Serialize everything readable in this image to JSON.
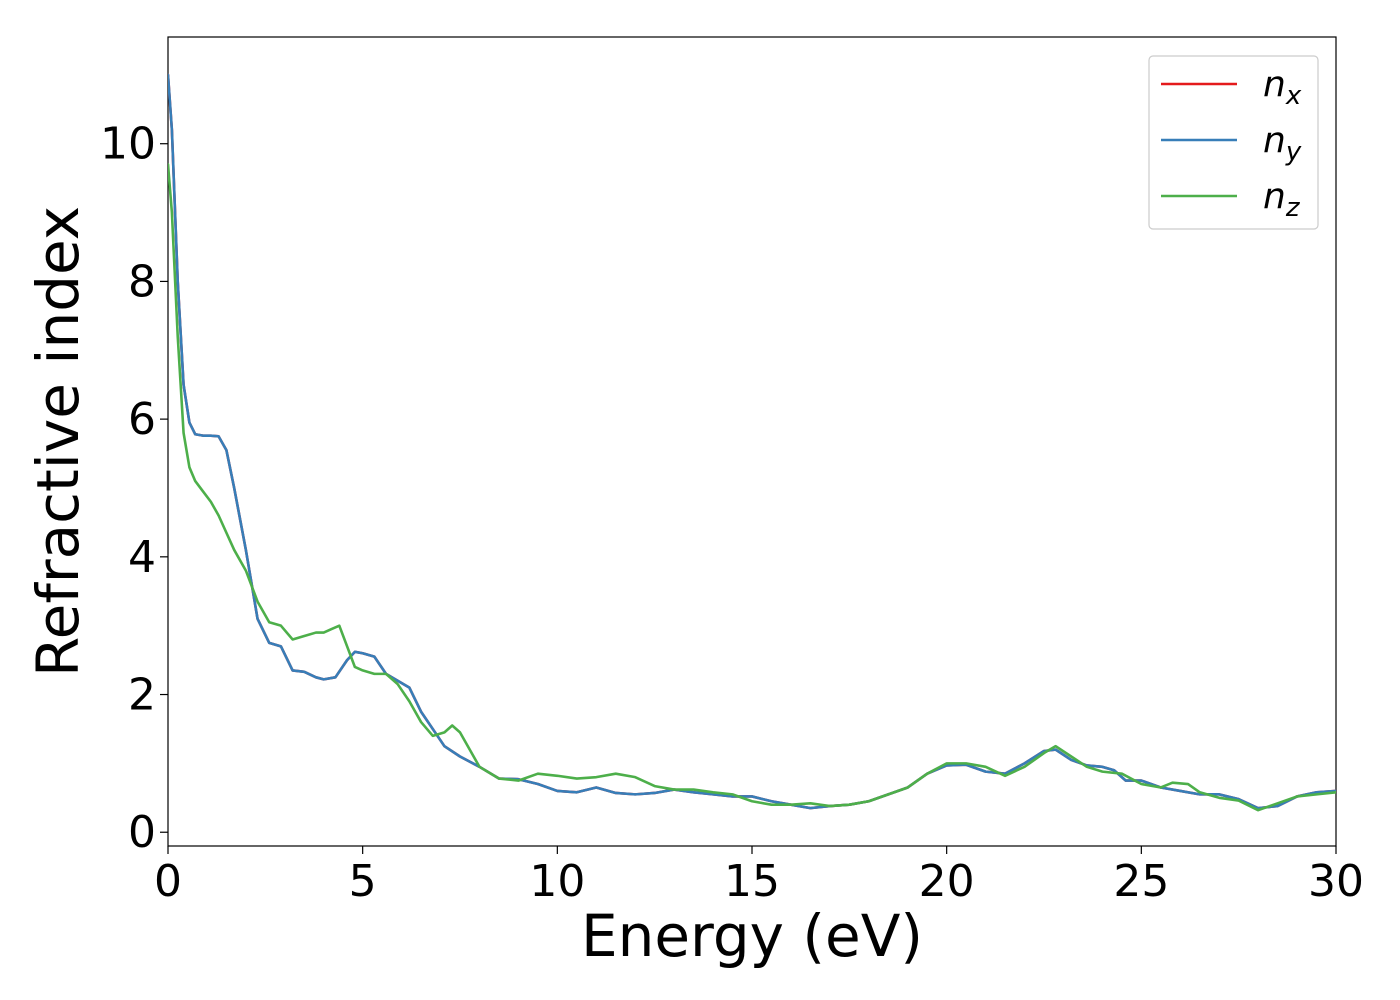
{
  "chart_data": {
    "type": "line",
    "title": "",
    "xlabel": "Energy (eV)",
    "ylabel": "Refractive index",
    "xlim": [
      0,
      30
    ],
    "ylim": [
      -0.2,
      11.55
    ],
    "x_ticks": [
      0,
      5,
      10,
      15,
      20,
      25,
      30
    ],
    "y_ticks": [
      0,
      2,
      4,
      6,
      8,
      10
    ],
    "grid": false,
    "legend_position": "top-right",
    "series": [
      {
        "name": "n_x",
        "legend_base": "n",
        "legend_sub": "x",
        "color": "#e41a1c",
        "x": [
          0,
          0.1,
          0.25,
          0.4,
          0.55,
          0.7,
          0.9,
          1.1,
          1.3,
          1.5,
          1.7,
          2.0,
          2.3,
          2.6,
          2.9,
          3.2,
          3.5,
          3.8,
          4.0,
          4.3,
          4.6,
          4.8,
          5.0,
          5.3,
          5.6,
          5.9,
          6.2,
          6.5,
          6.8,
          7.1,
          7.5,
          8.0,
          8.5,
          9.0,
          9.5,
          10.0,
          10.5,
          11.0,
          11.5,
          12.0,
          12.5,
          13.0,
          13.5,
          14.0,
          14.5,
          15.0,
          15.5,
          16.0,
          16.5,
          17.0,
          17.5,
          18.0,
          18.5,
          19.0,
          19.5,
          20.0,
          20.5,
          21.0,
          21.5,
          22.0,
          22.5,
          22.8,
          23.2,
          23.6,
          24.0,
          24.3,
          24.6,
          25.0,
          25.5,
          26.0,
          26.5,
          27.0,
          27.5,
          28.0,
          28.5,
          29.0,
          29.5,
          30.0
        ],
        "y": [
          11.0,
          10.2,
          8.0,
          6.5,
          5.95,
          5.78,
          5.76,
          5.76,
          5.75,
          5.55,
          5.0,
          4.1,
          3.1,
          2.75,
          2.7,
          2.35,
          2.33,
          2.25,
          2.22,
          2.25,
          2.5,
          2.62,
          2.6,
          2.55,
          2.3,
          2.2,
          2.1,
          1.75,
          1.5,
          1.25,
          1.1,
          0.95,
          0.78,
          0.77,
          0.7,
          0.6,
          0.58,
          0.65,
          0.57,
          0.55,
          0.57,
          0.62,
          0.58,
          0.55,
          0.52,
          0.52,
          0.45,
          0.4,
          0.35,
          0.38,
          0.4,
          0.45,
          0.55,
          0.65,
          0.85,
          0.97,
          0.98,
          0.88,
          0.85,
          1.0,
          1.18,
          1.2,
          1.05,
          0.97,
          0.95,
          0.9,
          0.75,
          0.75,
          0.65,
          0.6,
          0.55,
          0.55,
          0.48,
          0.35,
          0.38,
          0.52,
          0.58,
          0.6
        ]
      },
      {
        "name": "n_y",
        "legend_base": "n",
        "legend_sub": "y",
        "color": "#377eb8",
        "x": [
          0,
          0.1,
          0.25,
          0.4,
          0.55,
          0.7,
          0.9,
          1.1,
          1.3,
          1.5,
          1.7,
          2.0,
          2.3,
          2.6,
          2.9,
          3.2,
          3.5,
          3.8,
          4.0,
          4.3,
          4.6,
          4.8,
          5.0,
          5.3,
          5.6,
          5.9,
          6.2,
          6.5,
          6.8,
          7.1,
          7.5,
          8.0,
          8.5,
          9.0,
          9.5,
          10.0,
          10.5,
          11.0,
          11.5,
          12.0,
          12.5,
          13.0,
          13.5,
          14.0,
          14.5,
          15.0,
          15.5,
          16.0,
          16.5,
          17.0,
          17.5,
          18.0,
          18.5,
          19.0,
          19.5,
          20.0,
          20.5,
          21.0,
          21.5,
          22.0,
          22.5,
          22.8,
          23.2,
          23.6,
          24.0,
          24.3,
          24.6,
          25.0,
          25.5,
          26.0,
          26.5,
          27.0,
          27.5,
          28.0,
          28.5,
          29.0,
          29.5,
          30.0
        ],
        "y": [
          11.0,
          10.2,
          8.0,
          6.5,
          5.95,
          5.78,
          5.76,
          5.76,
          5.75,
          5.55,
          5.0,
          4.1,
          3.1,
          2.75,
          2.7,
          2.35,
          2.33,
          2.25,
          2.22,
          2.25,
          2.5,
          2.62,
          2.6,
          2.55,
          2.3,
          2.2,
          2.1,
          1.75,
          1.5,
          1.25,
          1.1,
          0.95,
          0.78,
          0.77,
          0.7,
          0.6,
          0.58,
          0.65,
          0.57,
          0.55,
          0.57,
          0.62,
          0.58,
          0.55,
          0.52,
          0.52,
          0.45,
          0.4,
          0.35,
          0.38,
          0.4,
          0.45,
          0.55,
          0.65,
          0.85,
          0.97,
          0.98,
          0.88,
          0.85,
          1.0,
          1.18,
          1.2,
          1.05,
          0.97,
          0.95,
          0.9,
          0.75,
          0.75,
          0.65,
          0.6,
          0.55,
          0.55,
          0.48,
          0.35,
          0.38,
          0.52,
          0.58,
          0.6
        ]
      },
      {
        "name": "n_z",
        "legend_base": "n",
        "legend_sub": "z",
        "color": "#4daf4a",
        "x": [
          0,
          0.1,
          0.25,
          0.4,
          0.55,
          0.7,
          0.9,
          1.1,
          1.3,
          1.5,
          1.7,
          2.0,
          2.3,
          2.6,
          2.9,
          3.2,
          3.5,
          3.8,
          4.0,
          4.2,
          4.4,
          4.6,
          4.8,
          5.0,
          5.3,
          5.6,
          5.9,
          6.2,
          6.5,
          6.8,
          7.1,
          7.3,
          7.5,
          8.0,
          8.5,
          9.0,
          9.5,
          10.0,
          10.5,
          11.0,
          11.5,
          12.0,
          12.5,
          13.0,
          13.5,
          14.0,
          14.5,
          15.0,
          15.5,
          16.0,
          16.5,
          17.0,
          17.5,
          18.0,
          18.5,
          19.0,
          19.5,
          20.0,
          20.5,
          21.0,
          21.5,
          22.0,
          22.5,
          22.8,
          23.2,
          23.6,
          24.0,
          24.5,
          25.0,
          25.5,
          25.8,
          26.2,
          26.5,
          27.0,
          27.5,
          28.0,
          28.5,
          29.0,
          29.5,
          30.0
        ],
        "y": [
          9.7,
          9.0,
          7.2,
          5.8,
          5.3,
          5.1,
          4.95,
          4.8,
          4.6,
          4.35,
          4.1,
          3.8,
          3.35,
          3.05,
          3.0,
          2.8,
          2.85,
          2.9,
          2.9,
          2.95,
          3.0,
          2.7,
          2.4,
          2.35,
          2.3,
          2.3,
          2.15,
          1.9,
          1.6,
          1.4,
          1.45,
          1.55,
          1.45,
          0.95,
          0.78,
          0.75,
          0.85,
          0.82,
          0.78,
          0.8,
          0.85,
          0.8,
          0.67,
          0.62,
          0.62,
          0.58,
          0.55,
          0.45,
          0.4,
          0.4,
          0.42,
          0.38,
          0.4,
          0.45,
          0.55,
          0.65,
          0.85,
          1.0,
          1.0,
          0.95,
          0.82,
          0.95,
          1.15,
          1.25,
          1.1,
          0.95,
          0.88,
          0.85,
          0.7,
          0.65,
          0.72,
          0.7,
          0.58,
          0.5,
          0.46,
          0.32,
          0.42,
          0.52,
          0.55,
          0.58
        ]
      }
    ]
  }
}
